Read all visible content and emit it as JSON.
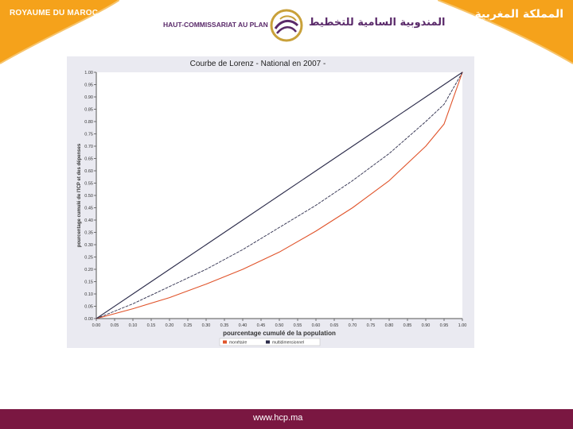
{
  "header": {
    "kingdom_fr": "ROYAUME DU MAROC",
    "kingdom_ar": "المملكة المغربية",
    "org_fr": "HAUT-COMMISSARIAT AU PLAN",
    "org_ar": "المندوبية السامية للتخطيط",
    "accent_color": "#f5a21b",
    "brand_color": "#5a2a6a"
  },
  "footer": {
    "url": "www.hcp.ma",
    "bar_color": "#7a1741"
  },
  "chart_data": {
    "type": "line",
    "title": "Courbe de Lorenz - National  en 2007 -",
    "xlabel": "pourcentage cumulé de la population",
    "ylabel": "pourcentage cumulé de l'ICP et des dépenses",
    "xlim": [
      0,
      1
    ],
    "ylim": [
      0,
      1
    ],
    "x_ticks": [
      "0.00",
      "0.05",
      "0.10",
      "0.15",
      "0.20",
      "0.25",
      "0.30",
      "0.35",
      "0.40",
      "0.45",
      "0.50",
      "0.55",
      "0.60",
      "0.65",
      "0.70",
      "0.75",
      "0.80",
      "0.85",
      "0.90",
      "0.95",
      "1.00"
    ],
    "y_ticks": [
      "0.00",
      "0.05",
      "0.10",
      "0.15",
      "0.20",
      "0.25",
      "0.30",
      "0.35",
      "0.40",
      "0.45",
      "0.50",
      "0.55",
      "0.60",
      "0.65",
      "0.70",
      "0.75",
      "0.80",
      "0.85",
      "0.90",
      "0.95",
      "1.00"
    ],
    "grid": false,
    "legend_position": "bottom",
    "x": [
      0,
      0.1,
      0.2,
      0.3,
      0.4,
      0.5,
      0.6,
      0.7,
      0.8,
      0.9,
      0.95,
      1.0
    ],
    "series": [
      {
        "name": "",
        "color": "#2b2b4a",
        "dash": "solid",
        "values": [
          0,
          0.1,
          0.2,
          0.3,
          0.4,
          0.5,
          0.6,
          0.7,
          0.8,
          0.9,
          0.95,
          1.0
        ]
      },
      {
        "name": "monétaire",
        "color": "#e0532a",
        "dash": "solid",
        "values": [
          0,
          0.04,
          0.085,
          0.14,
          0.2,
          0.27,
          0.355,
          0.45,
          0.56,
          0.7,
          0.79,
          1.0
        ]
      },
      {
        "name": "multidimensionnel",
        "color": "#2b2b4a",
        "dash": "dashed",
        "values": [
          0,
          0.06,
          0.13,
          0.2,
          0.28,
          0.37,
          0.46,
          0.56,
          0.67,
          0.8,
          0.87,
          1.0
        ]
      }
    ]
  }
}
